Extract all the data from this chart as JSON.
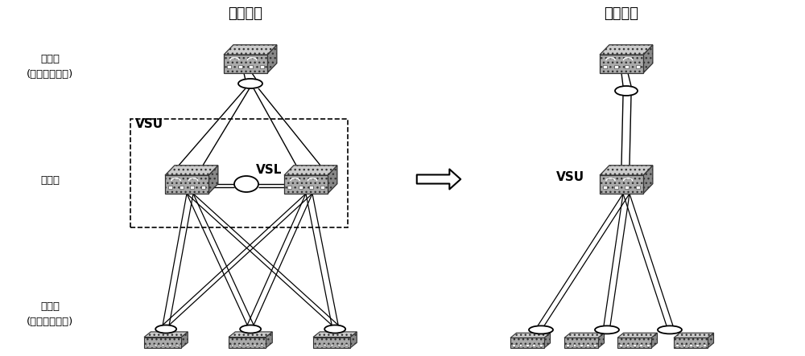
{
  "title_left": "物理视图",
  "title_right": "逻辑视图",
  "label_core": "核心层\n(上联对端设备)",
  "label_aggregation": "汇聚层",
  "label_access": "接入层\n(下联对端设备)",
  "label_vsu": "VSU",
  "label_vsl": "VSL",
  "label_vsu_right": "VSU",
  "bg_color": "#ffffff",
  "line_color": "#000000",
  "text_color": "#000000"
}
